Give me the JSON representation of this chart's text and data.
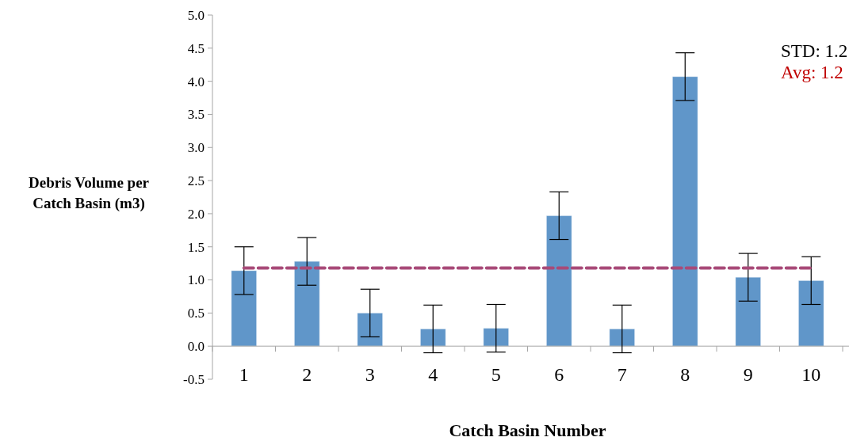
{
  "chart_data": {
    "type": "bar",
    "xlabel": "Catch Basin Number",
    "ylabel": "Debris Volume per Catch Basin (m3)",
    "categories": [
      "1",
      "2",
      "3",
      "4",
      "5",
      "6",
      "7",
      "8",
      "9",
      "10"
    ],
    "values": [
      1.14,
      1.28,
      0.5,
      0.26,
      0.27,
      1.97,
      0.26,
      4.07,
      1.04,
      0.99
    ],
    "errors": [
      0.36,
      0.36,
      0.36,
      0.36,
      0.36,
      0.36,
      0.36,
      0.36,
      0.36,
      0.36
    ],
    "color": "#6096c9",
    "ylim": [
      -0.5,
      5
    ],
    "yticks": [
      {
        "value": -0.5,
        "label": "-0.5"
      },
      {
        "value": 0,
        "label": "0.0"
      },
      {
        "value": 0.5,
        "label": "0.5"
      },
      {
        "value": 1,
        "label": "1.0"
      },
      {
        "value": 1.5,
        "label": "1.5"
      },
      {
        "value": 2,
        "label": "2.0"
      },
      {
        "value": 2.5,
        "label": "2.5"
      },
      {
        "value": 3,
        "label": "3.0"
      },
      {
        "value": 3.5,
        "label": "3.5"
      },
      {
        "value": 4,
        "label": "4.0"
      },
      {
        "value": 4.5,
        "label": "4.5"
      },
      {
        "value": 5,
        "label": "5.0"
      }
    ],
    "ref_lines": [
      {
        "axis": "y",
        "value": 1.18,
        "color": "#a84a78",
        "line_style": "dashed"
      }
    ],
    "annotations": [
      "STD: 1.2",
      "Avg: 1.2"
    ],
    "grid": false
  }
}
